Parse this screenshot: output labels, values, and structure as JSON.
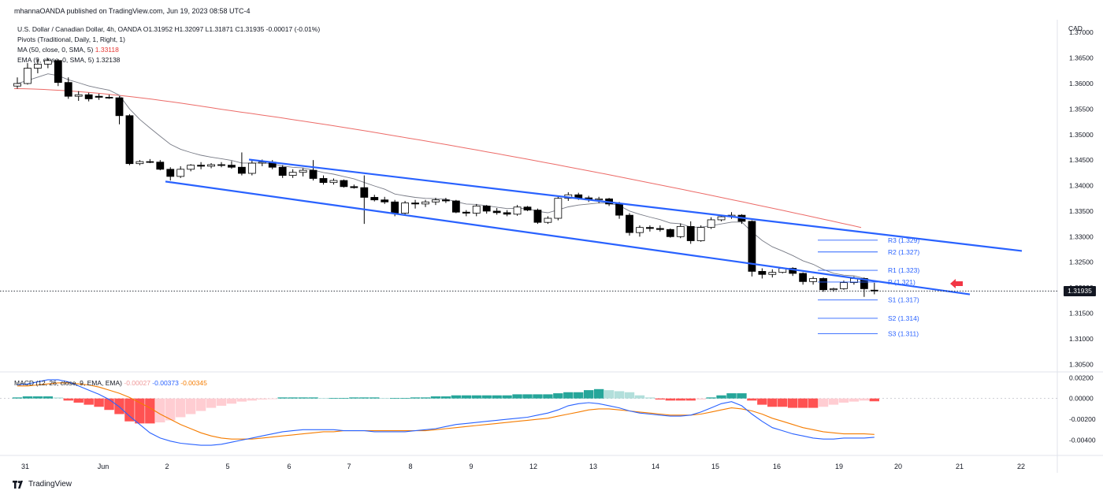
{
  "header": {
    "published": "mhannaOANDA published on TradingView.com, Jun 19, 2023 08:58 UTC-4"
  },
  "legend": {
    "symbol": "U.S. Dollar / Canadian Dollar, 4h, OANDA",
    "ohlc": "O1.31952  H1.32097  L1.31871  C1.31935  -0.00017 (-0.01%)",
    "pivots": "Pivots (Traditional, Daily, 1, Right, 1)",
    "ma_label": "MA (50, close, 0, SMA, 5)",
    "ma_value": "1.33118",
    "ema_label": "EMA (9, close, 0, SMA, 5)",
    "ema_value": "1.32138"
  },
  "currency": "CAD",
  "last_price": "1.31935",
  "macd_legend": {
    "label": "MACD (12, 26, close, 9, EMA, EMA)",
    "hist": "-0.00027",
    "macd": "-0.00373",
    "signal": "-0.00345"
  },
  "footer": {
    "brand": "TradingView"
  },
  "colors": {
    "up": "#ffffff",
    "down": "#000000",
    "channel": "#2962ff",
    "ma": "#e53935",
    "ema": "#787b86",
    "macd": "#2962ff",
    "signal": "#f57c00",
    "hist_up_strong": "#26a69a",
    "hist_up_weak": "#b2dfdb",
    "hist_down_strong": "#ff5252",
    "hist_down_weak": "#ffcdd2",
    "arrow": "#f23645"
  },
  "chart_data": {
    "type": "candlestick",
    "timeframe": "4h",
    "y_axis": {
      "ticks": [
        "1.37000",
        "1.36500",
        "1.36000",
        "1.35500",
        "1.35000",
        "1.34500",
        "1.34000",
        "1.33500",
        "1.33000",
        "1.32500",
        "1.32000",
        "1.31500",
        "1.31000",
        "1.30500"
      ],
      "range": [
        1.3035,
        1.3725
      ]
    },
    "x_axis": {
      "ticks": [
        "31",
        "Jun",
        "2",
        "5",
        "6",
        "7",
        "8",
        "9",
        "12",
        "13",
        "14",
        "15",
        "16",
        "19",
        "20",
        "21",
        "22"
      ]
    },
    "candles": [
      [
        1.3595,
        1.3612,
        1.359,
        1.36
      ],
      [
        1.36,
        1.364,
        1.3598,
        1.363
      ],
      [
        1.363,
        1.3648,
        1.362,
        1.3638
      ],
      [
        1.3638,
        1.365,
        1.363,
        1.3645
      ],
      [
        1.3645,
        1.3648,
        1.3595,
        1.3602
      ],
      [
        1.3602,
        1.3612,
        1.357,
        1.3575
      ],
      [
        1.3575,
        1.3585,
        1.3566,
        1.3578
      ],
      [
        1.3578,
        1.3582,
        1.3565,
        1.357
      ],
      [
        1.3575,
        1.358,
        1.3568,
        1.3573
      ],
      [
        1.3573,
        1.3578,
        1.357,
        1.3572
      ],
      [
        1.3572,
        1.3575,
        1.352,
        1.3537
      ],
      [
        1.3537,
        1.354,
        1.344,
        1.3443
      ],
      [
        1.3443,
        1.345,
        1.344,
        1.3447
      ],
      [
        1.3447,
        1.3452,
        1.3444,
        1.3446
      ],
      [
        1.3446,
        1.345,
        1.343,
        1.3432
      ],
      [
        1.3432,
        1.3436,
        1.341,
        1.3418
      ],
      [
        1.3418,
        1.3438,
        1.3415,
        1.3432
      ],
      [
        1.3432,
        1.3442,
        1.3428,
        1.344
      ],
      [
        1.344,
        1.3446,
        1.3432,
        1.3438
      ],
      [
        1.3438,
        1.3444,
        1.3434,
        1.3441
      ],
      [
        1.3441,
        1.3446,
        1.3436,
        1.344
      ],
      [
        1.344,
        1.3448,
        1.3433,
        1.3436
      ],
      [
        1.3436,
        1.3465,
        1.342,
        1.3424
      ],
      [
        1.3424,
        1.345,
        1.342,
        1.3444
      ],
      [
        1.3444,
        1.3451,
        1.3438,
        1.3446
      ],
      [
        1.3446,
        1.345,
        1.3432,
        1.3436
      ],
      [
        1.3436,
        1.344,
        1.3415,
        1.342
      ],
      [
        1.342,
        1.3432,
        1.3415,
        1.3426
      ],
      [
        1.3426,
        1.3434,
        1.3418,
        1.343
      ],
      [
        1.343,
        1.345,
        1.341,
        1.3414
      ],
      [
        1.3414,
        1.342,
        1.3402,
        1.3406
      ],
      [
        1.3406,
        1.3414,
        1.3402,
        1.341
      ],
      [
        1.341,
        1.3412,
        1.3396,
        1.3398
      ],
      [
        1.3398,
        1.3402,
        1.3394,
        1.3396
      ],
      [
        1.3396,
        1.342,
        1.3325,
        1.3377
      ],
      [
        1.3377,
        1.3382,
        1.3369,
        1.3372
      ],
      [
        1.3372,
        1.3378,
        1.3364,
        1.3368
      ],
      [
        1.3368,
        1.3372,
        1.334,
        1.3346
      ],
      [
        1.3346,
        1.337,
        1.3342,
        1.3366
      ],
      [
        1.3366,
        1.3372,
        1.3355,
        1.3364
      ],
      [
        1.3364,
        1.3372,
        1.3358,
        1.3368
      ],
      [
        1.3368,
        1.3376,
        1.3362,
        1.3372
      ],
      [
        1.3372,
        1.3376,
        1.3366,
        1.337
      ],
      [
        1.337,
        1.3372,
        1.3346,
        1.3348
      ],
      [
        1.3348,
        1.3352,
        1.334,
        1.3346
      ],
      [
        1.3346,
        1.3364,
        1.334,
        1.336
      ],
      [
        1.336,
        1.3362,
        1.3345,
        1.335
      ],
      [
        1.335,
        1.3356,
        1.3343,
        1.3347
      ],
      [
        1.3347,
        1.3352,
        1.334,
        1.3344
      ],
      [
        1.3344,
        1.3362,
        1.3341,
        1.3358
      ],
      [
        1.3358,
        1.336,
        1.335,
        1.3352
      ],
      [
        1.3352,
        1.3355,
        1.3325,
        1.3328
      ],
      [
        1.3328,
        1.334,
        1.3325,
        1.3336
      ],
      [
        1.3336,
        1.338,
        1.3332,
        1.3375
      ],
      [
        1.3375,
        1.3387,
        1.337,
        1.3382
      ],
      [
        1.3382,
        1.3386,
        1.3372,
        1.3376
      ],
      [
        1.3376,
        1.338,
        1.3368,
        1.3372
      ],
      [
        1.3372,
        1.3378,
        1.3366,
        1.3374
      ],
      [
        1.3374,
        1.3376,
        1.336,
        1.3364
      ],
      [
        1.3364,
        1.3368,
        1.3335,
        1.3342
      ],
      [
        1.3342,
        1.3346,
        1.3302,
        1.3308
      ],
      [
        1.3308,
        1.3322,
        1.33,
        1.3318
      ],
      [
        1.3318,
        1.3322,
        1.331,
        1.3316
      ],
      [
        1.3316,
        1.3322,
        1.331,
        1.3314
      ],
      [
        1.3314,
        1.3316,
        1.3298,
        1.33
      ],
      [
        1.33,
        1.3326,
        1.3297,
        1.332
      ],
      [
        1.332,
        1.333,
        1.3286,
        1.3292
      ],
      [
        1.3292,
        1.3322,
        1.329,
        1.3318
      ],
      [
        1.3318,
        1.3338,
        1.3315,
        1.3333
      ],
      [
        1.3333,
        1.3342,
        1.333,
        1.3339
      ],
      [
        1.3339,
        1.3348,
        1.3335,
        1.3342
      ],
      [
        1.3342,
        1.3344,
        1.3325,
        1.333
      ],
      [
        1.333,
        1.3332,
        1.3222,
        1.3232
      ],
      [
        1.3232,
        1.3238,
        1.3218,
        1.3226
      ],
      [
        1.3226,
        1.3236,
        1.322,
        1.323
      ],
      [
        1.323,
        1.324,
        1.3228,
        1.3238
      ],
      [
        1.3238,
        1.324,
        1.3223,
        1.3228
      ],
      [
        1.3228,
        1.323,
        1.3206,
        1.3212
      ],
      [
        1.3212,
        1.3222,
        1.3206,
        1.3218
      ],
      [
        1.3218,
        1.322,
        1.3192,
        1.3196
      ],
      [
        1.3196,
        1.32,
        1.3192,
        1.3198
      ],
      [
        1.3198,
        1.3214,
        1.3196,
        1.321
      ],
      [
        1.321,
        1.3222,
        1.3206,
        1.3218
      ],
      [
        1.3218,
        1.322,
        1.3182,
        1.3198
      ],
      [
        1.31952,
        1.32097,
        1.31871,
        1.31935
      ]
    ],
    "pivot_levels": [
      {
        "label": "R3 (1.329)",
        "value": 1.3293
      },
      {
        "label": "R2 (1.327)",
        "value": 1.327
      },
      {
        "label": "R1 (1.323)",
        "value": 1.3234
      },
      {
        "label": "P (1.321)",
        "value": 1.3211
      },
      {
        "label": "S1 (1.317)",
        "value": 1.3176
      },
      {
        "label": "S2 (1.314)",
        "value": 1.314
      },
      {
        "label": "S3 (1.311)",
        "value": 1.311
      }
    ],
    "macd": {
      "y_axis": {
        "ticks": [
          "0.00200",
          "0.00000",
          "-0.00200",
          "-0.00400"
        ],
        "range": [
          -0.0054,
          0.0024
        ]
      },
      "histogram": [
        0.0001,
        0.0002,
        0.0002,
        0.0002,
        0.0001,
        -0.0002,
        -0.0004,
        -0.0006,
        -0.0008,
        -0.0011,
        -0.0015,
        -0.0022,
        -0.0024,
        -0.0024,
        -0.0023,
        -0.0021,
        -0.0018,
        -0.0015,
        -0.0012,
        -0.0009,
        -0.0007,
        -0.0005,
        -0.0003,
        -0.0002,
        -0.0001,
        -5e-05,
        0.0001,
        0.0001,
        0.0001,
        0.0001,
        5e-05,
        5e-05,
        5e-05,
        0.0001,
        0.0001,
        0.0001,
        5e-05,
        5e-05,
        5e-05,
        0.0001,
        0.0001,
        0.0002,
        0.0002,
        0.0003,
        0.0003,
        0.0003,
        0.0003,
        0.0003,
        0.0003,
        0.0004,
        0.0004,
        0.0004,
        0.0004,
        0.0005,
        0.0006,
        0.0006,
        0.0008,
        0.0009,
        0.0008,
        0.0007,
        0.0006,
        0.0003,
        0.0001,
        -0.0001,
        -0.0002,
        -0.0002,
        -0.0002,
        -0.0001,
        0.0001,
        0.0003,
        0.0005,
        0.0005,
        -0.0002,
        -0.0006,
        -0.0008,
        -0.0008,
        -0.0009,
        -0.0009,
        -0.0009,
        -0.0008,
        -0.0006,
        -0.0004,
        -0.0003,
        -0.0002,
        -0.00027
      ],
      "macd_line": [
        0.0013,
        0.0014,
        0.0016,
        0.0018,
        0.0018,
        0.0016,
        0.0012,
        0.0008,
        0.0004,
        -0.0001,
        -0.0008,
        -0.0017,
        -0.0025,
        -0.0033,
        -0.0038,
        -0.0041,
        -0.0043,
        -0.0044,
        -0.0045,
        -0.0045,
        -0.0044,
        -0.0042,
        -0.004,
        -0.0038,
        -0.0036,
        -0.0034,
        -0.0032,
        -0.0031,
        -0.003,
        -0.003,
        -0.003,
        -0.003,
        -0.0031,
        -0.0031,
        -0.0031,
        -0.0032,
        -0.0032,
        -0.0032,
        -0.0032,
        -0.0031,
        -0.003,
        -0.0029,
        -0.0027,
        -0.0025,
        -0.0024,
        -0.0023,
        -0.0022,
        -0.0021,
        -0.002,
        -0.0019,
        -0.0018,
        -0.0016,
        -0.0014,
        -0.0011,
        -0.0007,
        -0.0005,
        -0.0004,
        -0.0005,
        -0.0007,
        -0.0009,
        -0.0012,
        -0.0014,
        -0.0015,
        -0.0016,
        -0.0017,
        -0.0017,
        -0.0016,
        -0.0013,
        -0.0009,
        -0.0005,
        -0.0003,
        -0.0007,
        -0.0015,
        -0.0022,
        -0.0028,
        -0.0031,
        -0.0034,
        -0.0036,
        -0.0038,
        -0.0039,
        -0.0039,
        -0.0038,
        -0.0038,
        -0.0038,
        -0.00373
      ],
      "signal_line": [
        0.0012,
        0.0012,
        0.0013,
        0.0014,
        0.0015,
        0.0015,
        0.0014,
        0.0013,
        0.0011,
        0.0008,
        0.0005,
        0.0001,
        -0.0004,
        -0.0009,
        -0.0015,
        -0.002,
        -0.0025,
        -0.0029,
        -0.0033,
        -0.0036,
        -0.0038,
        -0.0039,
        -0.0039,
        -0.0039,
        -0.0038,
        -0.0037,
        -0.0036,
        -0.0035,
        -0.0034,
        -0.0033,
        -0.0032,
        -0.0032,
        -0.0031,
        -0.0031,
        -0.0031,
        -0.0031,
        -0.0031,
        -0.0031,
        -0.0031,
        -0.0031,
        -0.0031,
        -0.003,
        -0.0029,
        -0.0028,
        -0.0027,
        -0.0026,
        -0.0025,
        -0.0024,
        -0.0023,
        -0.0022,
        -0.0021,
        -0.002,
        -0.0019,
        -0.0017,
        -0.0015,
        -0.0013,
        -0.0011,
        -0.001,
        -0.001,
        -0.0011,
        -0.0012,
        -0.0013,
        -0.0014,
        -0.0015,
        -0.0016,
        -0.0016,
        -0.0016,
        -0.0015,
        -0.0013,
        -0.0011,
        -0.0009,
        -0.001,
        -0.0012,
        -0.0015,
        -0.0019,
        -0.0022,
        -0.0025,
        -0.0028,
        -0.003,
        -0.0032,
        -0.0033,
        -0.0034,
        -0.0034,
        -0.0034,
        -0.00345
      ]
    }
  }
}
